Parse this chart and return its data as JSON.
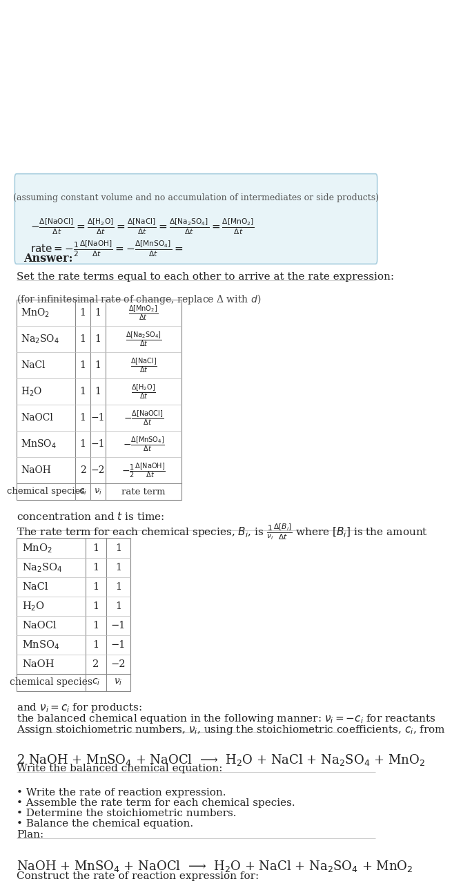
{
  "bg_color": "#ffffff",
  "title_line1": "Construct the rate of reaction expression for:",
  "reaction_unbalanced": "NaOH + MnSO$_4$ + NaOCl  ⟶  H$_2$O + NaCl + Na$_2$SO$_4$ + MnO$_2$",
  "plan_header": "Plan:",
  "plan_items": [
    "• Balance the chemical equation.",
    "• Determine the stoichiometric numbers.",
    "• Assemble the rate term for each chemical species.",
    "• Write the rate of reaction expression."
  ],
  "balanced_header": "Write the balanced chemical equation:",
  "reaction_balanced": "2 NaOH + MnSO$_4$ + NaOCl  ⟶  H$_2$O + NaCl + Na$_2$SO$_4$ + MnO$_2$",
  "assign_text1": "Assign stoichiometric numbers, $\\nu_i$, using the stoichiometric coefficients, $c_i$, from",
  "assign_text2": "the balanced chemical equation in the following manner: $\\nu_i = -c_i$ for reactants",
  "assign_text3": "and $\\nu_i = c_i$ for products:",
  "table1_headers": [
    "chemical species",
    "$c_i$",
    "$\\nu_i$"
  ],
  "table1_rows": [
    [
      "NaOH",
      "2",
      "−2"
    ],
    [
      "MnSO$_4$",
      "1",
      "−1"
    ],
    [
      "NaOCl",
      "1",
      "−1"
    ],
    [
      "H$_2$O",
      "1",
      "1"
    ],
    [
      "NaCl",
      "1",
      "1"
    ],
    [
      "Na$_2$SO$_4$",
      "1",
      "1"
    ],
    [
      "MnO$_2$",
      "1",
      "1"
    ]
  ],
  "rate_term_text1": "The rate term for each chemical species, $B_i$, is $\\frac{1}{\\nu_i}\\frac{\\Delta[B_i]}{\\Delta t}$ where $[B_i]$ is the amount",
  "rate_term_text2": "concentration and $t$ is time:",
  "table2_headers": [
    "chemical species",
    "$c_i$",
    "$\\nu_i$",
    "rate term"
  ],
  "table2_rows": [
    [
      "NaOH",
      "2",
      "−2",
      "$-\\frac{1}{2}\\frac{\\Delta[\\mathrm{NaOH}]}{\\Delta t}$"
    ],
    [
      "MnSO$_4$",
      "1",
      "−1",
      "$-\\frac{\\Delta[\\mathrm{MnSO_4}]}{\\Delta t}$"
    ],
    [
      "NaOCl",
      "1",
      "−1",
      "$-\\frac{\\Delta[\\mathrm{NaOCl}]}{\\Delta t}$"
    ],
    [
      "H$_2$O",
      "1",
      "1",
      "$\\frac{\\Delta[\\mathrm{H_2O}]}{\\Delta t}$"
    ],
    [
      "NaCl",
      "1",
      "1",
      "$\\frac{\\Delta[\\mathrm{NaCl}]}{\\Delta t}$"
    ],
    [
      "Na$_2$SO$_4$",
      "1",
      "1",
      "$\\frac{\\Delta[\\mathrm{Na_2SO_4}]}{\\Delta t}$"
    ],
    [
      "MnO$_2$",
      "1",
      "1",
      "$\\frac{\\Delta[\\mathrm{MnO_2}]}{\\Delta t}$"
    ]
  ],
  "infinitesimal_note": "(for infinitesimal rate of change, replace Δ with $d$)",
  "set_rate_text": "Set the rate terms equal to each other to arrive at the rate expression:",
  "answer_box_color": "#e8f4f8",
  "answer_box_border": "#aacfdf",
  "answer_label": "Answer:",
  "answer_line1": "$\\mathrm{rate} = -\\frac{1}{2}\\frac{\\Delta[\\mathrm{NaOH}]}{\\Delta t} = -\\frac{\\Delta[\\mathrm{MnSO_4}]}{\\Delta t} =$",
  "answer_line2": "$-\\frac{\\Delta[\\mathrm{NaOCl}]}{\\Delta t} = \\frac{\\Delta[\\mathrm{H_2O}]}{\\Delta t} = \\frac{\\Delta[\\mathrm{NaCl}]}{\\Delta t} = \\frac{\\Delta[\\mathrm{Na_2SO_4}]}{\\Delta t} = \\frac{\\Delta[\\mathrm{MnO_2}]}{\\Delta t}$",
  "answer_note": "(assuming constant volume and no accumulation of intermediates or side products)"
}
